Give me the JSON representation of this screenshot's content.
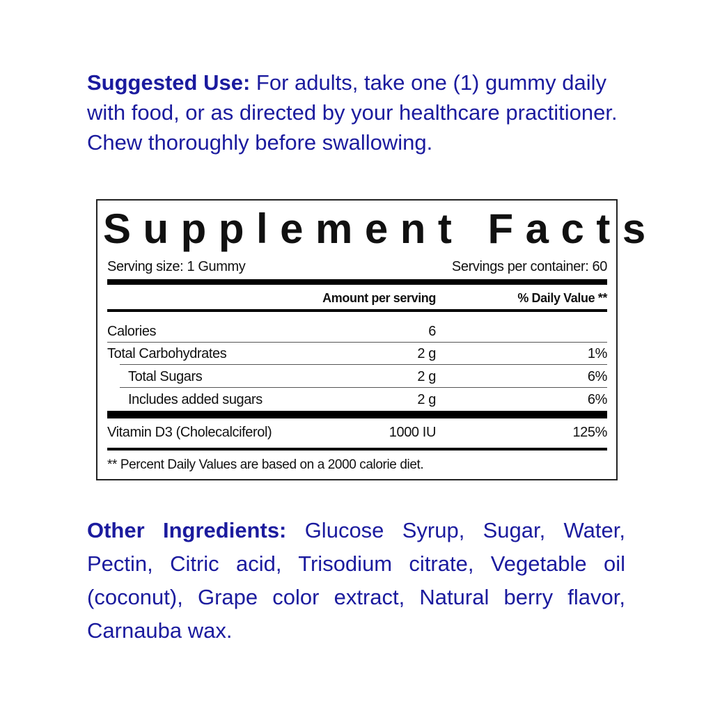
{
  "suggested_use": {
    "label": "Suggested Use:",
    "text": " For adults, take one (1) gummy daily with food, or as directed by your healthcare practitioner. Chew thoroughly before swallowing."
  },
  "facts": {
    "title": "Supplement Facts",
    "serving_size": "Serving size: 1 Gummy",
    "servings_per_container": "Servings per container: 60",
    "header_amount": "Amount per serving",
    "header_dv": "% Daily Value **",
    "rows": [
      {
        "name": "Calories",
        "amount": "6",
        "dv": ""
      },
      {
        "name": "Total Carbohydrates",
        "amount": "2 g",
        "dv": "1%"
      },
      {
        "name": "Total Sugars",
        "amount": "2 g",
        "dv": "6%"
      },
      {
        "name": "Includes added sugars",
        "amount": "2 g",
        "dv": "6%"
      },
      {
        "name": "Vitamin D3 (Cholecalciferol)",
        "amount": "1000 IU",
        "dv": "125%"
      }
    ],
    "footnote": "** Percent Daily Values are based on a 2000 calorie diet."
  },
  "other_ingredients": {
    "label": "Other Ingredients:",
    "text": " Glucose Syrup, Sugar, Water, Pectin, Citric acid, Trisodium citrate, Vegetable oil (coconut), Grape color extract, Natural berry flavor, Carnauba wax."
  },
  "colors": {
    "text_blue": "#1b1b9e",
    "label_black": "#111111"
  }
}
